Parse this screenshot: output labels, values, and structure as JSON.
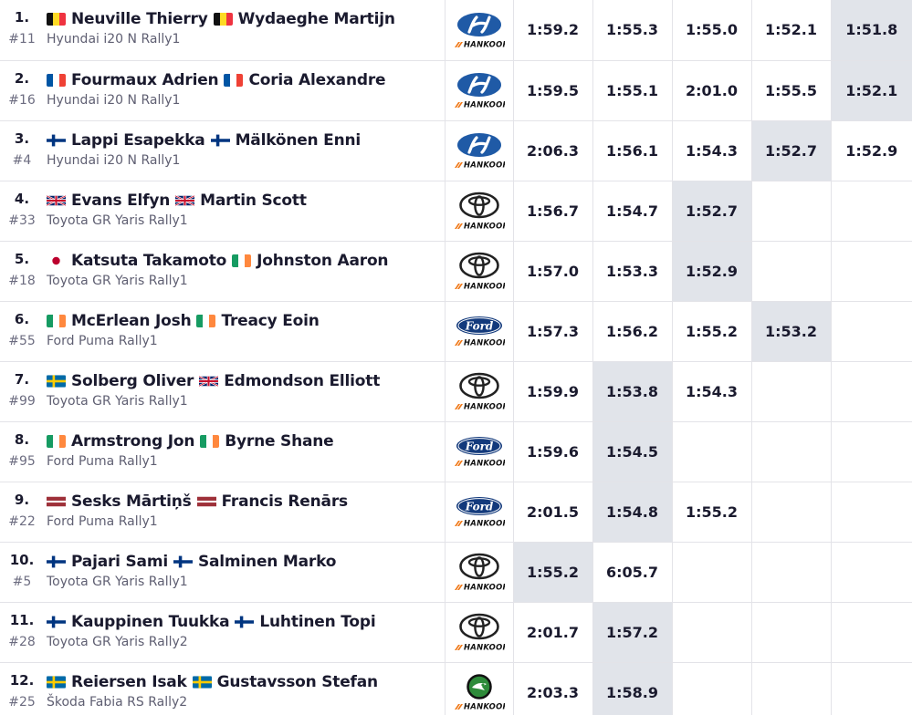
{
  "table": {
    "rows": [
      {
        "position": "1.",
        "car_number": "#11",
        "driver": {
          "name": "Neuville Thierry",
          "flag": "be"
        },
        "codriver": {
          "name": "Wydaeghe Martijn",
          "flag": "be"
        },
        "car": "Hyundai i20 N Rally1",
        "manufacturer": "hyundai-logo",
        "times": [
          "1:59.2",
          "1:55.3",
          "1:55.0",
          "1:52.1",
          "1:51.8"
        ],
        "best_index": 4
      },
      {
        "position": "2.",
        "car_number": "#16",
        "driver": {
          "name": "Fourmaux Adrien",
          "flag": "fr"
        },
        "codriver": {
          "name": "Coria Alexandre",
          "flag": "fr"
        },
        "car": "Hyundai i20 N Rally1",
        "manufacturer": "hyundai-logo",
        "times": [
          "1:59.5",
          "1:55.1",
          "2:01.0",
          "1:55.5",
          "1:52.1"
        ],
        "best_index": 4
      },
      {
        "position": "3.",
        "car_number": "#4",
        "driver": {
          "name": "Lappi Esapekka",
          "flag": "fi"
        },
        "codriver": {
          "name": "Mälkönen Enni",
          "flag": "fi"
        },
        "car": "Hyundai i20 N Rally1",
        "manufacturer": "hyundai-logo",
        "times": [
          "2:06.3",
          "1:56.1",
          "1:54.3",
          "1:52.7",
          "1:52.9"
        ],
        "best_index": 3
      },
      {
        "position": "4.",
        "car_number": "#33",
        "driver": {
          "name": "Evans Elfyn",
          "flag": "gb"
        },
        "codriver": {
          "name": "Martin Scott",
          "flag": "gb"
        },
        "car": "Toyota GR Yaris Rally1",
        "manufacturer": "toyota-logo",
        "times": [
          "1:56.7",
          "1:54.7",
          "1:52.7",
          "",
          ""
        ],
        "best_index": 2
      },
      {
        "position": "5.",
        "car_number": "#18",
        "driver": {
          "name": "Katsuta Takamoto",
          "flag": "jp"
        },
        "codriver": {
          "name": "Johnston Aaron",
          "flag": "ie"
        },
        "car": "Toyota GR Yaris Rally1",
        "manufacturer": "toyota-logo",
        "times": [
          "1:57.0",
          "1:53.3",
          "1:52.9",
          "",
          ""
        ],
        "best_index": 2
      },
      {
        "position": "6.",
        "car_number": "#55",
        "driver": {
          "name": "McErlean Josh",
          "flag": "ie"
        },
        "codriver": {
          "name": "Treacy Eoin",
          "flag": "ie"
        },
        "car": "Ford Puma Rally1",
        "manufacturer": "ford-logo",
        "times": [
          "1:57.3",
          "1:56.2",
          "1:55.2",
          "1:53.2",
          ""
        ],
        "best_index": 3
      },
      {
        "position": "7.",
        "car_number": "#99",
        "driver": {
          "name": "Solberg Oliver",
          "flag": "se"
        },
        "codriver": {
          "name": "Edmondson Elliott",
          "flag": "gb"
        },
        "car": "Toyota GR Yaris Rally1",
        "manufacturer": "toyota-logo",
        "times": [
          "1:59.9",
          "1:53.8",
          "1:54.3",
          "",
          ""
        ],
        "best_index": 1
      },
      {
        "position": "8.",
        "car_number": "#95",
        "driver": {
          "name": "Armstrong Jon",
          "flag": "ie"
        },
        "codriver": {
          "name": "Byrne Shane",
          "flag": "ie"
        },
        "car": "Ford Puma Rally1",
        "manufacturer": "ford-logo",
        "times": [
          "1:59.6",
          "1:54.5",
          "",
          "",
          ""
        ],
        "best_index": 1
      },
      {
        "position": "9.",
        "car_number": "#22",
        "driver": {
          "name": "Sesks Mārtiņš",
          "flag": "lv"
        },
        "codriver": {
          "name": "Francis Renārs",
          "flag": "lv"
        },
        "car": "Ford Puma Rally1",
        "manufacturer": "ford-logo",
        "times": [
          "2:01.5",
          "1:54.8",
          "1:55.2",
          "",
          ""
        ],
        "best_index": 1
      },
      {
        "position": "10.",
        "car_number": "#5",
        "driver": {
          "name": "Pajari Sami",
          "flag": "fi"
        },
        "codriver": {
          "name": "Salminen Marko",
          "flag": "fi"
        },
        "car": "Toyota GR Yaris Rally1",
        "manufacturer": "toyota-logo",
        "times": [
          "1:55.2",
          "6:05.7",
          "",
          "",
          ""
        ],
        "best_index": 0
      },
      {
        "position": "11.",
        "car_number": "#28",
        "driver": {
          "name": "Kauppinen Tuukka",
          "flag": "fi"
        },
        "codriver": {
          "name": "Luhtinen Topi",
          "flag": "fi"
        },
        "car": "Toyota GR Yaris Rally2",
        "manufacturer": "toyota-logo",
        "times": [
          "2:01.7",
          "1:57.2",
          "",
          "",
          ""
        ],
        "best_index": 1
      },
      {
        "position": "12.",
        "car_number": "#25",
        "driver": {
          "name": "Reiersen Isak",
          "flag": "se"
        },
        "codriver": {
          "name": "Gustavsson Stefan",
          "flag": "se"
        },
        "car": "Škoda Fabia RS Rally2",
        "manufacturer": "skoda-logo",
        "times": [
          "2:03.3",
          "1:58.9",
          "",
          "",
          ""
        ],
        "best_index": 1
      }
    ]
  },
  "tyre_brand": "hankook-logo",
  "colors": {
    "best_time_bg": "#e1e4ea",
    "divider": "#e3e3e8",
    "hyundai": "#1f5aa6",
    "ford": "#133a7c",
    "skoda": "#2e8b3a",
    "hankook": "#f07a1a"
  }
}
